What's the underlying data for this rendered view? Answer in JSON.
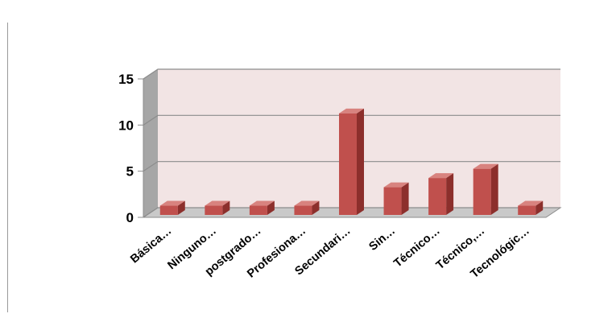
{
  "chart_data": {
    "type": "bar",
    "style": "3d-column",
    "categories": [
      "Básica…",
      "Ninguno…",
      "postgrado…",
      "Profesiona…",
      "Secundari…",
      "Sin…",
      "Técnico…",
      "Técnico,…",
      "Tecnológic…"
    ],
    "values": [
      1,
      1,
      1,
      1,
      11,
      3,
      4,
      5,
      1
    ],
    "ylim": [
      0,
      15
    ],
    "yticks": [
      0,
      5,
      10,
      15
    ],
    "grid": true,
    "legend": "none",
    "colors": {
      "bar_front": "#c0504d",
      "bar_side": "#8c2f2c",
      "bar_top": "#d8837f",
      "back_wall": "#f2e4e4",
      "side_wall": "#a6a6a6",
      "floor": "#c9c9c9",
      "gridline": "#8c8c8c"
    }
  }
}
